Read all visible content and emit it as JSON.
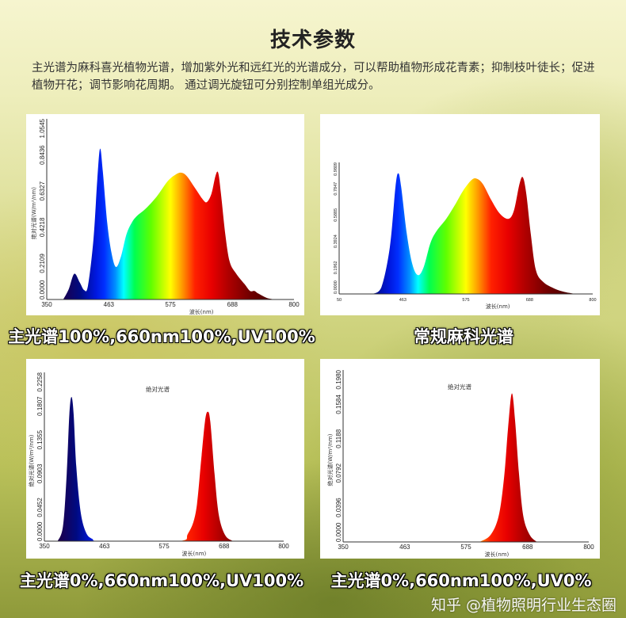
{
  "header": {
    "title": "技术参数",
    "description": "主光谱为麻科喜光植物光谱，增加紫外光和远红光的光谱成分，可以帮助植物形成花青素；抑制枝叶徒长；促进植物开花；调节影响花周期。 通过调光旋钮可分别控制单组光成分。"
  },
  "captions": [
    "主光谱100%,660nm100%,UV100%",
    "常规麻科光谱",
    "主光谱0%,660nm100%,UV100%",
    "主光谱0%,660nm100%,UV0%"
  ],
  "watermark": "知乎 @植物照明行业生态圈",
  "chart_data": [
    {
      "type": "area",
      "title": "",
      "xlabel": "波长(nm)",
      "ylabel": "绝对光谱(W/m²/nm)",
      "xlim": [
        350,
        800
      ],
      "ylim": [
        0,
        1.0545
      ],
      "xticks": [
        "350",
        "463",
        "575",
        "688",
        "800"
      ],
      "yticks": [
        "0.0000",
        "0.2109",
        "0.4218",
        "0.6327",
        "0.8436",
        "1.0545"
      ],
      "points": [
        [
          380,
          0
        ],
        [
          390,
          0.06
        ],
        [
          400,
          0.15
        ],
        [
          410,
          0.1
        ],
        [
          418,
          0.055
        ],
        [
          425,
          0.08
        ],
        [
          435,
          0.35
        ],
        [
          442,
          0.7
        ],
        [
          447,
          0.88
        ],
        [
          452,
          0.75
        ],
        [
          460,
          0.45
        ],
        [
          468,
          0.27
        ],
        [
          476,
          0.19
        ],
        [
          485,
          0.25
        ],
        [
          495,
          0.38
        ],
        [
          505,
          0.45
        ],
        [
          515,
          0.49
        ],
        [
          530,
          0.53
        ],
        [
          550,
          0.6
        ],
        [
          570,
          0.69
        ],
        [
          585,
          0.73
        ],
        [
          595,
          0.74
        ],
        [
          605,
          0.72
        ],
        [
          620,
          0.65
        ],
        [
          635,
          0.58
        ],
        [
          642,
          0.57
        ],
        [
          650,
          0.62
        ],
        [
          657,
          0.72
        ],
        [
          662,
          0.74
        ],
        [
          667,
          0.62
        ],
        [
          675,
          0.38
        ],
        [
          683,
          0.22
        ],
        [
          695,
          0.15
        ],
        [
          710,
          0.09
        ],
        [
          720,
          0.05
        ],
        [
          728,
          0.05
        ],
        [
          735,
          0.035
        ],
        [
          750,
          0.01
        ],
        [
          765,
          0
        ]
      ]
    },
    {
      "type": "area",
      "title": "",
      "xlabel": "波长(nm)",
      "ylabel": "",
      "xlim": [
        350,
        800
      ],
      "ylim": [
        0,
        0.9809
      ],
      "xticks": [
        "50",
        "463",
        "575",
        "688",
        "800"
      ],
      "yticks": [
        "0.0000",
        "0.1962",
        "0.3924",
        "0.5885",
        "0.7847",
        "0.9809"
      ],
      "points": [
        [
          410,
          0
        ],
        [
          425,
          0.05
        ],
        [
          440,
          0.35
        ],
        [
          450,
          0.8
        ],
        [
          455,
          0.9
        ],
        [
          460,
          0.8
        ],
        [
          470,
          0.45
        ],
        [
          480,
          0.22
        ],
        [
          490,
          0.14
        ],
        [
          500,
          0.2
        ],
        [
          512,
          0.38
        ],
        [
          523,
          0.47
        ],
        [
          540,
          0.56
        ],
        [
          555,
          0.66
        ],
        [
          570,
          0.77
        ],
        [
          585,
          0.85
        ],
        [
          594,
          0.86
        ],
        [
          605,
          0.82
        ],
        [
          620,
          0.7
        ],
        [
          635,
          0.6
        ],
        [
          650,
          0.56
        ],
        [
          660,
          0.62
        ],
        [
          670,
          0.82
        ],
        [
          676,
          0.87
        ],
        [
          682,
          0.75
        ],
        [
          690,
          0.45
        ],
        [
          699,
          0.18
        ],
        [
          712,
          0.09
        ],
        [
          732,
          0.04
        ],
        [
          750,
          0.015
        ],
        [
          770,
          0
        ]
      ]
    },
    {
      "type": "area",
      "title": "绝对光谱",
      "xlabel": "波长(nm)",
      "ylabel": "绝对光谱(W/m²/nm)",
      "xlim": [
        350,
        800
      ],
      "ylim": [
        0,
        0.2258
      ],
      "xticks": [
        "350",
        "463",
        "575",
        "688",
        "800"
      ],
      "yticks": [
        "0.0000",
        "0.0452",
        "0.0903",
        "0.1355",
        "0.1807",
        "0.2258"
      ],
      "points": [
        [
          375,
          0
        ],
        [
          385,
          0.02
        ],
        [
          392,
          0.09
        ],
        [
          397,
          0.17
        ],
        [
          401,
          0.193
        ],
        [
          405,
          0.17
        ],
        [
          410,
          0.1
        ],
        [
          418,
          0.04
        ],
        [
          428,
          0.012
        ],
        [
          440,
          0.003
        ],
        [
          460,
          0
        ],
        [
          600,
          0
        ],
        [
          620,
          0.01
        ],
        [
          635,
          0.04
        ],
        [
          645,
          0.11
        ],
        [
          652,
          0.16
        ],
        [
          657,
          0.173
        ],
        [
          662,
          0.16
        ],
        [
          670,
          0.09
        ],
        [
          678,
          0.035
        ],
        [
          690,
          0.008
        ],
        [
          705,
          0
        ]
      ]
    },
    {
      "type": "area",
      "title": "绝对光谱",
      "xlabel": "波长(nm)",
      "ylabel": "绝对光谱(W/m²/nm)",
      "xlim": [
        350,
        800
      ],
      "ylim": [
        0,
        0.198
      ],
      "xticks": [
        "350",
        "463",
        "575",
        "688",
        "800"
      ],
      "yticks": [
        "0.0000",
        "0.0396",
        "0.0792",
        "0.1188",
        "0.1584",
        "0.1980"
      ],
      "points": [
        [
          600,
          0
        ],
        [
          620,
          0.008
        ],
        [
          635,
          0.03
        ],
        [
          645,
          0.075
        ],
        [
          652,
          0.13
        ],
        [
          659,
          0.171
        ],
        [
          665,
          0.14
        ],
        [
          672,
          0.08
        ],
        [
          680,
          0.03
        ],
        [
          692,
          0.008
        ],
        [
          705,
          0
        ]
      ]
    }
  ]
}
